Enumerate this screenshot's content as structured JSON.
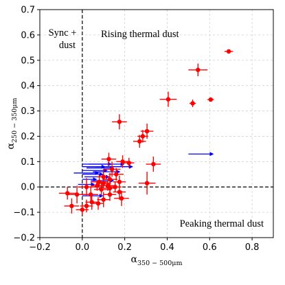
{
  "chart_data": {
    "type": "scatter",
    "title": "",
    "xlabel": "α350 − 500μm",
    "ylabel": "α250 − 350μm",
    "xlabel_parts": {
      "main": "α",
      "sub": "350 − 500μm"
    },
    "ylabel_parts": {
      "main": "α",
      "sub": "250 − 350μm"
    },
    "xlim": [
      -0.2,
      0.9
    ],
    "ylim": [
      -0.2,
      0.7
    ],
    "xticks": [
      -0.2,
      0.0,
      0.2,
      0.4,
      0.6,
      0.8
    ],
    "yticks": [
      -0.2,
      -0.1,
      0.0,
      0.1,
      0.2,
      0.3,
      0.4,
      0.5,
      0.6,
      0.7
    ],
    "xtick_labels": [
      "−0.2",
      "0.0",
      "0.2",
      "0.4",
      "0.6",
      "0.8"
    ],
    "ytick_labels": [
      "−0.2",
      "−0.1",
      "0.0",
      "0.1",
      "0.2",
      "0.3",
      "0.4",
      "0.5",
      "0.6",
      "0.7"
    ],
    "grid": true,
    "reference_lines": {
      "vertical_x": 0.0,
      "horizontal_y": 0.0,
      "style": "dashed"
    },
    "region_labels": {
      "sync_dust_line1": "Sync +",
      "sync_dust_line2": "dust",
      "rising": "Rising thermal dust",
      "peaking": "Peaking thermal dust"
    },
    "colors": {
      "points": "#ff0000",
      "limits": "#0000ff",
      "grid": "#d0d0d0"
    },
    "series": [
      {
        "type": "points_with_errorbars",
        "points": [
          {
            "x": 0.69,
            "y": 0.535,
            "xerr": 0.02,
            "yerr": 0.008
          },
          {
            "x": 0.545,
            "y": 0.462,
            "xerr": 0.045,
            "yerr": 0.025
          },
          {
            "x": 0.52,
            "y": 0.33,
            "xerr": 0.015,
            "yerr": 0.015
          },
          {
            "x": 0.605,
            "y": 0.345,
            "xerr": 0.015,
            "yerr": 0.008
          },
          {
            "x": 0.405,
            "y": 0.346,
            "xerr": 0.04,
            "yerr": 0.03
          },
          {
            "x": 0.175,
            "y": 0.257,
            "xerr": 0.035,
            "yerr": 0.03
          },
          {
            "x": 0.305,
            "y": 0.22,
            "xerr": 0.03,
            "yerr": 0.03
          },
          {
            "x": 0.285,
            "y": 0.2,
            "xerr": 0.025,
            "yerr": 0.025
          },
          {
            "x": 0.27,
            "y": 0.18,
            "xerr": 0.03,
            "yerr": 0.025
          },
          {
            "x": 0.335,
            "y": 0.09,
            "xerr": 0.035,
            "yerr": 0.03
          },
          {
            "x": 0.305,
            "y": 0.015,
            "xerr": 0.04,
            "yerr": 0.045
          },
          {
            "x": 0.125,
            "y": 0.11,
            "xerr": 0.035,
            "yerr": 0.025
          },
          {
            "x": 0.19,
            "y": 0.1,
            "xerr": 0.03,
            "yerr": 0.025
          },
          {
            "x": 0.22,
            "y": 0.095,
            "xerr": 0.025,
            "yerr": 0.02
          },
          {
            "x": 0.14,
            "y": 0.07,
            "xerr": 0.04,
            "yerr": 0.03
          },
          {
            "x": 0.16,
            "y": 0.05,
            "xerr": 0.035,
            "yerr": 0.025
          },
          {
            "x": 0.1,
            "y": 0.04,
            "xerr": 0.03,
            "yerr": 0.03
          },
          {
            "x": 0.13,
            "y": 0.03,
            "xerr": 0.035,
            "yerr": 0.025
          },
          {
            "x": 0.08,
            "y": 0.02,
            "xerr": 0.04,
            "yerr": 0.03
          },
          {
            "x": 0.175,
            "y": 0.02,
            "xerr": 0.03,
            "yerr": 0.025
          },
          {
            "x": 0.1,
            "y": 0.015,
            "xerr": 0.035,
            "yerr": 0.02
          },
          {
            "x": 0.12,
            "y": 0.005,
            "xerr": 0.03,
            "yerr": 0.02
          },
          {
            "x": 0.07,
            "y": 0.005,
            "xerr": 0.03,
            "yerr": 0.02
          },
          {
            "x": 0.155,
            "y": 0.0,
            "xerr": 0.03,
            "yerr": 0.02
          },
          {
            "x": 0.13,
            "y": -0.005,
            "xerr": 0.03,
            "yerr": 0.025
          },
          {
            "x": 0.02,
            "y": 0.0,
            "xerr": 0.04,
            "yerr": 0.035
          },
          {
            "x": 0.09,
            "y": -0.01,
            "xerr": 0.035,
            "yerr": 0.025
          },
          {
            "x": 0.175,
            "y": -0.02,
            "xerr": 0.03,
            "yerr": 0.03
          },
          {
            "x": 0.13,
            "y": -0.03,
            "xerr": 0.03,
            "yerr": 0.025
          },
          {
            "x": 0.04,
            "y": -0.03,
            "xerr": 0.035,
            "yerr": 0.03
          },
          {
            "x": -0.07,
            "y": -0.025,
            "xerr": 0.04,
            "yerr": 0.025
          },
          {
            "x": -0.025,
            "y": -0.03,
            "xerr": 0.045,
            "yerr": 0.035
          },
          {
            "x": 0.1,
            "y": -0.05,
            "xerr": 0.03,
            "yerr": 0.03
          },
          {
            "x": 0.185,
            "y": -0.045,
            "xerr": 0.035,
            "yerr": 0.03
          },
          {
            "x": 0.075,
            "y": -0.065,
            "xerr": 0.025,
            "yerr": 0.025
          },
          {
            "x": 0.045,
            "y": -0.06,
            "xerr": 0.03,
            "yerr": 0.03
          },
          {
            "x": -0.05,
            "y": -0.075,
            "xerr": 0.035,
            "yerr": 0.03
          },
          {
            "x": 0.0,
            "y": -0.09,
            "xerr": 0.03,
            "yerr": 0.02
          },
          {
            "x": 0.02,
            "y": -0.075,
            "xerr": 0.03,
            "yerr": 0.025
          }
        ]
      },
      {
        "type": "lower_limits_arrows",
        "arrows": [
          {
            "x0": 0.5,
            "x1": 0.62,
            "y": 0.13
          },
          {
            "x0": 0.0,
            "x1": 0.14,
            "y": 0.09
          },
          {
            "x0": 0.0,
            "x1": 0.11,
            "y": 0.08
          },
          {
            "x0": 0.02,
            "x1": 0.15,
            "y": 0.075
          },
          {
            "x0": 0.0,
            "x1": 0.12,
            "y": 0.065
          },
          {
            "x0": 0.03,
            "x1": 0.2,
            "y": 0.09
          },
          {
            "x0": 0.06,
            "x1": 0.24,
            "y": 0.08
          },
          {
            "x0": 0.0,
            "x1": 0.1,
            "y": 0.05
          },
          {
            "x0": -0.04,
            "x1": 0.08,
            "y": 0.055
          },
          {
            "x0": 0.01,
            "x1": 0.13,
            "y": 0.04
          },
          {
            "x0": 0.0,
            "x1": 0.07,
            "y": 0.03
          },
          {
            "x0": 0.04,
            "x1": 0.15,
            "y": 0.025
          },
          {
            "x0": -0.02,
            "x1": 0.06,
            "y": 0.01
          },
          {
            "x0": 0.05,
            "x1": 0.18,
            "y": 0.06
          },
          {
            "x0": 0.0,
            "x1": 0.1,
            "y": -0.035
          }
        ]
      }
    ]
  }
}
